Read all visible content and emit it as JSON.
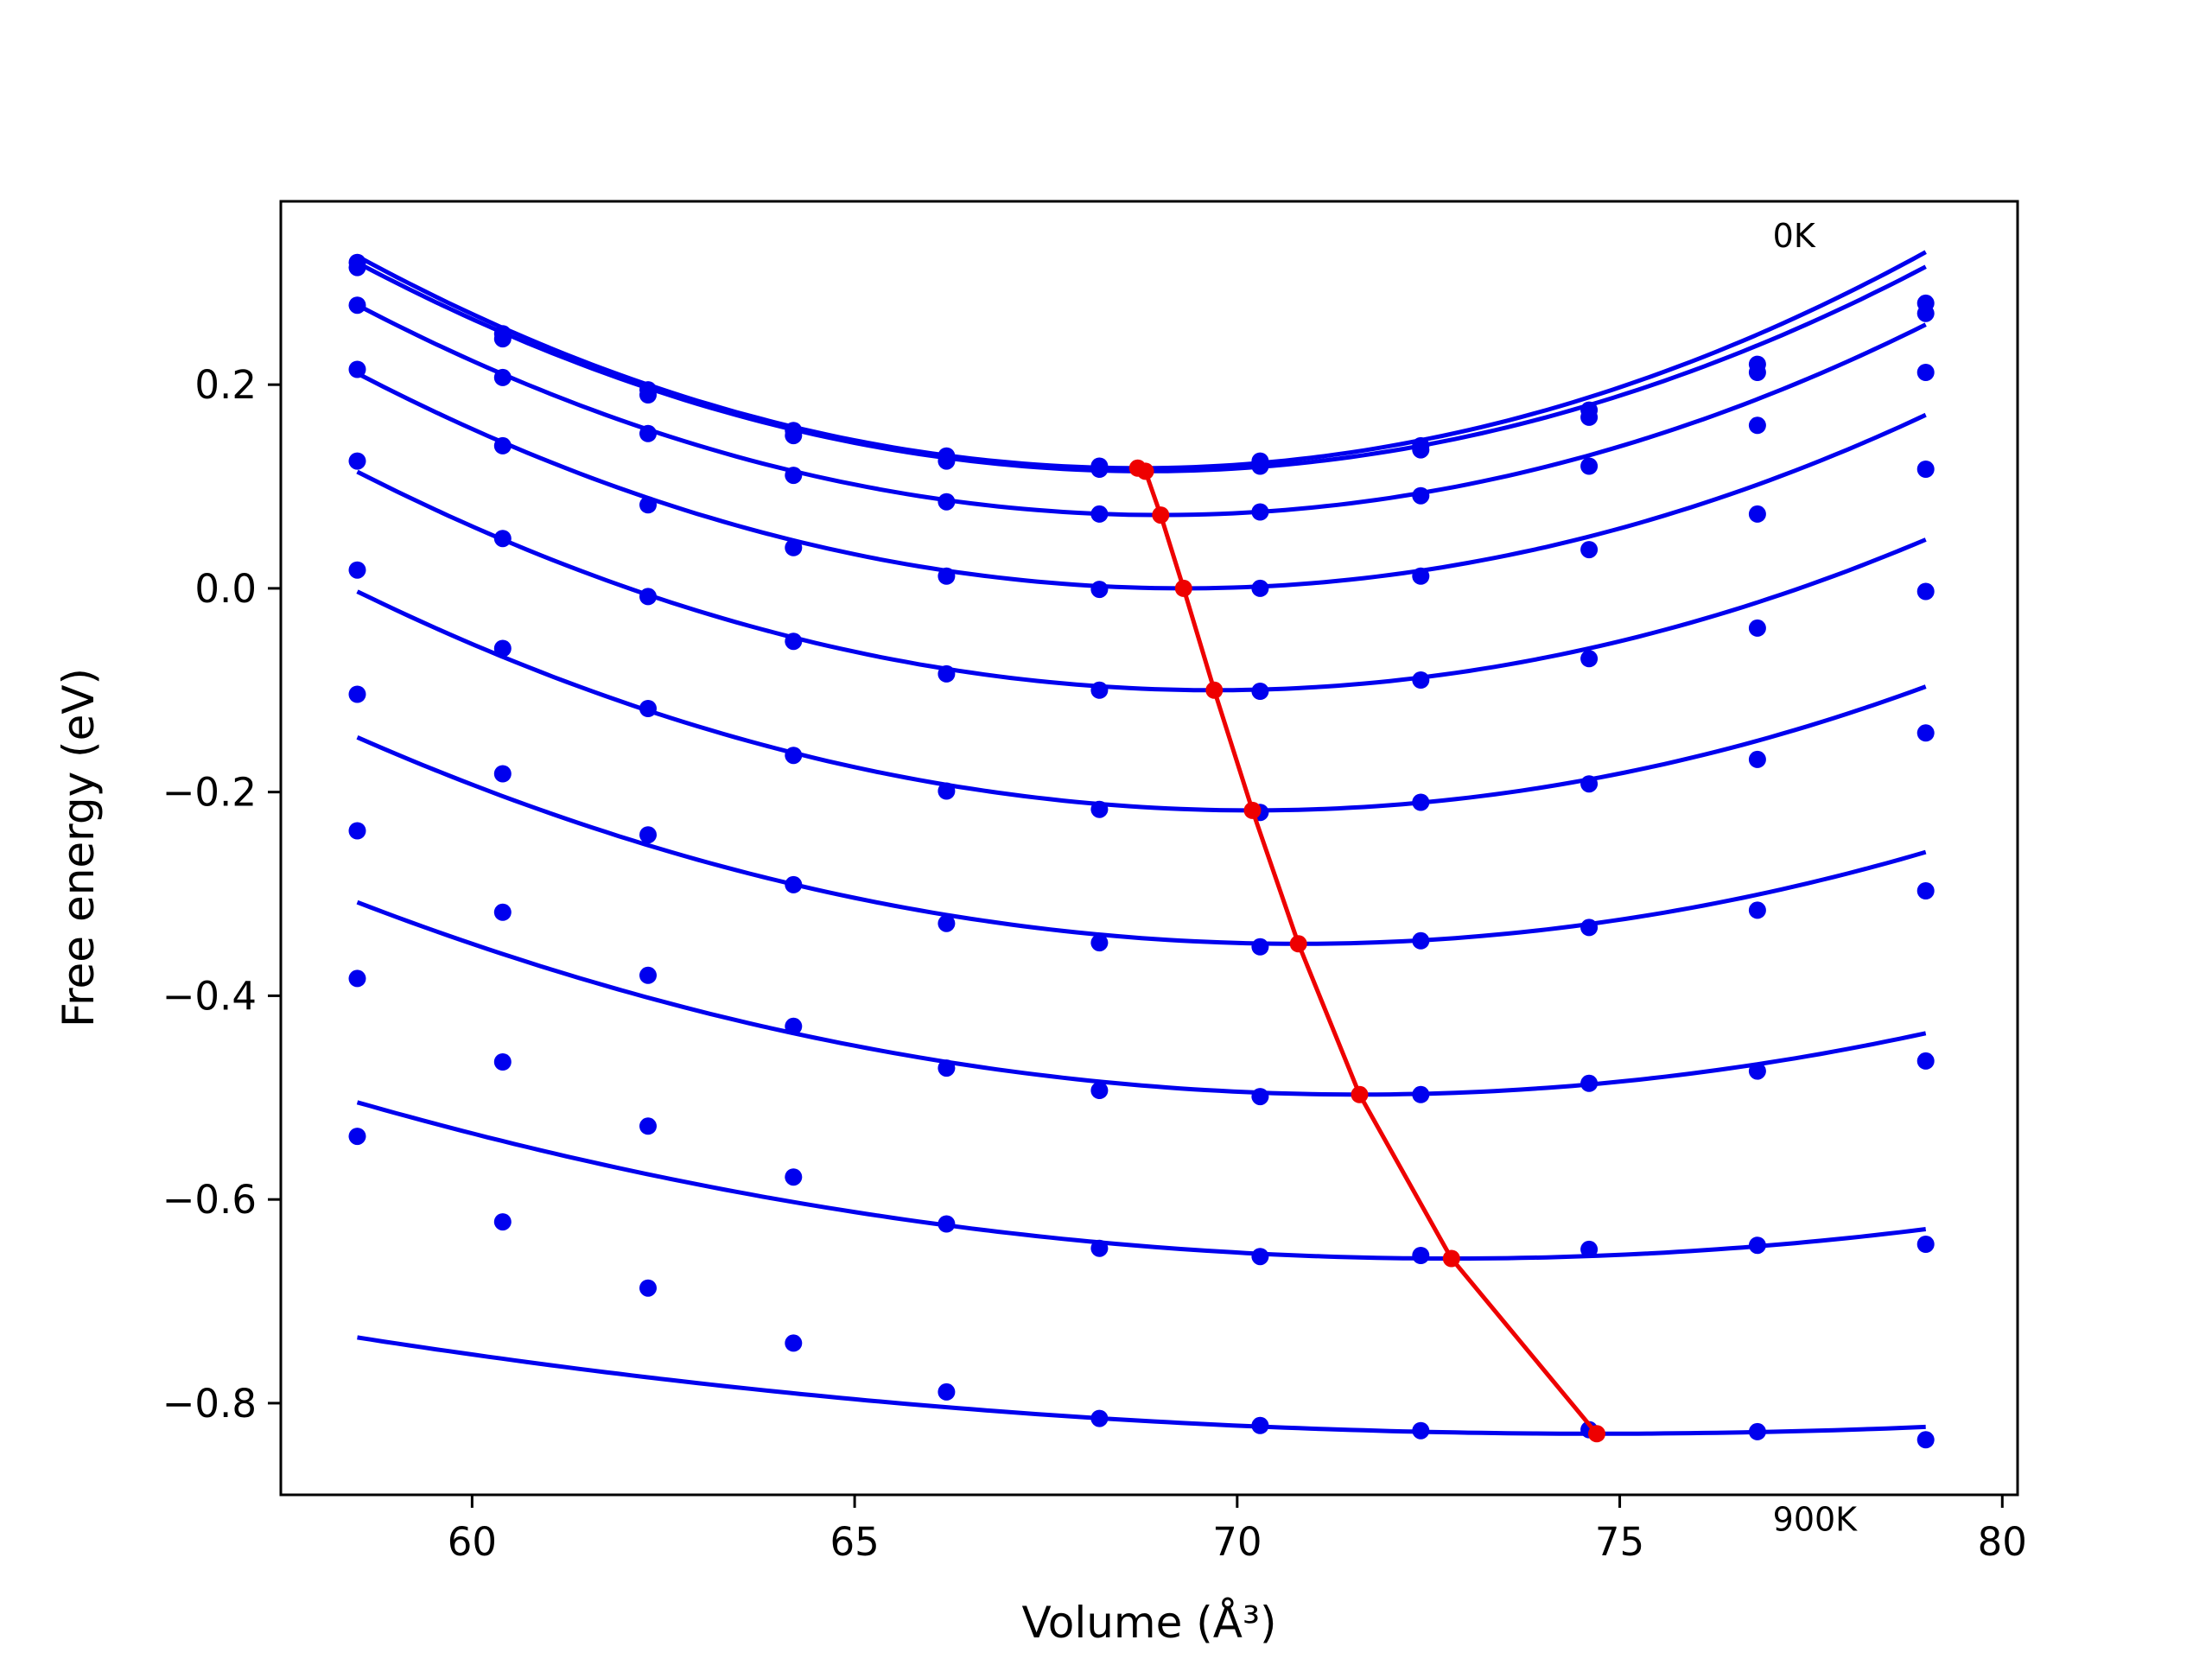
{
  "chart_data": {
    "type": "line",
    "title": "",
    "xlabel": "Volume (Å³)",
    "ylabel": "Free energy (eV)",
    "xlim": [
      57.5,
      80.2
    ],
    "ylim": [
      -0.89,
      0.38
    ],
    "xticks": [
      60,
      65,
      70,
      75,
      80
    ],
    "xtick_labels": [
      "60",
      "65",
      "70",
      "75",
      "80"
    ],
    "yticks": [
      0.2,
      0.0,
      -0.2,
      -0.4,
      -0.6,
      -0.8
    ],
    "ytick_labels": [
      "0.2",
      "0.0",
      "−0.2",
      "−0.4",
      "−0.6",
      "−0.8"
    ],
    "grid": false,
    "annotations": [
      {
        "text": "0K",
        "x": 77.0,
        "y": 0.335
      },
      {
        "text": "900K",
        "x": 77.0,
        "y": -0.925
      }
    ],
    "series_color": "#0000ee",
    "minimum_color": "#ee0000",
    "x": [
      58.5,
      60.4,
      62.3,
      64.2,
      66.2,
      68.2,
      70.3,
      72.4,
      74.6,
      76.8,
      79.0
    ],
    "series": [
      {
        "values": [
          0.32,
          0.25,
          0.195,
          0.155,
          0.13,
          0.12,
          0.125,
          0.14,
          0.175,
          0.22,
          0.28
        ]
      },
      {
        "values": [
          0.315,
          0.245,
          0.19,
          0.15,
          0.125,
          0.117,
          0.12,
          0.136,
          0.168,
          0.212,
          0.27
        ]
      },
      {
        "values": [
          0.278,
          0.207,
          0.152,
          0.111,
          0.085,
          0.073,
          0.075,
          0.091,
          0.12,
          0.16,
          0.212
        ]
      },
      {
        "values": [
          0.215,
          0.14,
          0.082,
          0.04,
          0.012,
          -0.001,
          0.0,
          0.012,
          0.038,
          0.073,
          0.117
        ]
      },
      {
        "values": [
          0.125,
          0.049,
          -0.008,
          -0.052,
          -0.084,
          -0.1,
          -0.101,
          -0.09,
          -0.069,
          -0.039,
          -0.003
        ]
      },
      {
        "values": [
          0.018,
          -0.059,
          -0.118,
          -0.164,
          -0.199,
          -0.217,
          -0.22,
          -0.21,
          -0.192,
          -0.168,
          -0.142
        ]
      },
      {
        "values": [
          -0.104,
          -0.182,
          -0.242,
          -0.291,
          -0.329,
          -0.348,
          -0.352,
          -0.346,
          -0.333,
          -0.316,
          -0.297
        ]
      },
      {
        "values": [
          -0.238,
          -0.318,
          -0.38,
          -0.43,
          -0.471,
          -0.493,
          -0.499,
          -0.497,
          -0.486,
          -0.474,
          -0.464
        ]
      },
      {
        "values": [
          -0.383,
          -0.465,
          -0.528,
          -0.578,
          -0.624,
          -0.648,
          -0.656,
          -0.655,
          -0.649,
          -0.645,
          -0.644
        ]
      },
      {
        "values": [
          -0.538,
          -0.622,
          -0.687,
          -0.741,
          -0.789,
          -0.815,
          -0.822,
          -0.827,
          -0.826,
          -0.828,
          -0.836
        ]
      }
    ],
    "fit_curves": [
      {
        "a": 0.002,
        "v0": 68.7,
        "emin": 0.118
      },
      {
        "a": 0.00193,
        "v0": 68.8,
        "emin": 0.115
      },
      {
        "a": 0.00187,
        "v0": 69.0,
        "emin": 0.072
      },
      {
        "a": 0.00181,
        "v0": 69.3,
        "emin": 0.0
      },
      {
        "a": 0.00171,
        "v0": 69.7,
        "emin": -0.1
      },
      {
        "a": 0.00157,
        "v0": 70.2,
        "emin": -0.218
      },
      {
        "a": 0.00134,
        "v0": 70.8,
        "emin": -0.349
      },
      {
        "a": 0.0011,
        "v0": 71.6,
        "emin": -0.497
      },
      {
        "a": 0.00075,
        "v0": 72.8,
        "emin": -0.658
      },
      {
        "a": 0.00036,
        "v0": 74.7,
        "emin": -0.83
      }
    ],
    "minimum_line": {
      "x": [
        68.7,
        68.8,
        69.0,
        69.3,
        69.7,
        70.2,
        70.8,
        71.6,
        72.8,
        74.7
      ],
      "y": [
        0.118,
        0.115,
        0.072,
        0.0,
        -0.1,
        -0.218,
        -0.349,
        -0.497,
        -0.658,
        -0.83
      ]
    }
  }
}
